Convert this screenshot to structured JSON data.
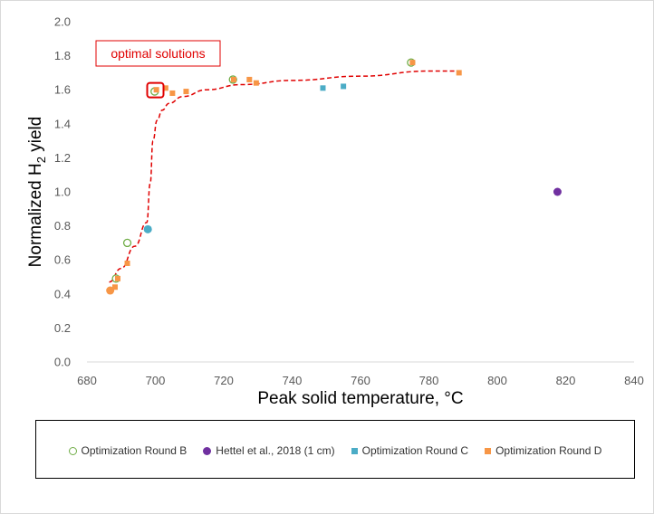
{
  "chart_data": {
    "type": "scatter",
    "xlabel": "Peak solid temperature, °C",
    "ylabel_prefix": "Normalized H",
    "ylabel_sub": "2",
    "ylabel_suffix": " yield",
    "xlim": [
      680,
      840
    ],
    "ylim": [
      0.0,
      2.0
    ],
    "xticks": [
      "680",
      "700",
      "720",
      "740",
      "760",
      "780",
      "800",
      "820",
      "840"
    ],
    "yticks": [
      "0.0",
      "0.2",
      "0.4",
      "0.6",
      "0.8",
      "1.0",
      "1.2",
      "1.4",
      "1.6",
      "1.8",
      "2.0"
    ],
    "grid": false,
    "legend_position": "bottom",
    "series": [
      {
        "name": "Optimization Round B",
        "marker": "open-circle",
        "color": "#70ad47",
        "points": [
          [
            688.5,
            0.49
          ],
          [
            691.8,
            0.7
          ],
          [
            699.8,
            1.59
          ],
          [
            722.7,
            1.66
          ],
          [
            774.8,
            1.76
          ]
        ]
      },
      {
        "name": "Hettel et al., 2018 (1 cm)",
        "marker": "circle",
        "color": "#7030a0",
        "points": [
          [
            817.6,
            1.0
          ]
        ]
      },
      {
        "name": "Optimization Round C",
        "marker": "square",
        "color": "#4bacc6",
        "points": [
          [
            749.0,
            1.61
          ],
          [
            755.0,
            1.62
          ]
        ]
      },
      {
        "name": "Optimization Round D",
        "marker": "square",
        "color": "#f79646",
        "points": [
          [
            688.2,
            0.44
          ],
          [
            689.0,
            0.49
          ],
          [
            691.8,
            0.58
          ],
          [
            700.3,
            1.6
          ],
          [
            703.0,
            1.61
          ],
          [
            705.0,
            1.58
          ],
          [
            709.0,
            1.59
          ],
          [
            722.9,
            1.66
          ],
          [
            727.5,
            1.66
          ],
          [
            729.5,
            1.64
          ],
          [
            775.2,
            1.76
          ],
          [
            788.8,
            1.7
          ]
        ]
      }
    ],
    "extra_points": [
      {
        "x": 686.8,
        "y": 0.42,
        "color": "#f79646",
        "marker": "circle"
      },
      {
        "x": 697.8,
        "y": 0.78,
        "color": "#4bacc6",
        "marker": "circle"
      }
    ],
    "trend_line": {
      "color": "#e00000",
      "style": "dashed",
      "points": [
        [
          686.5,
          0.47
        ],
        [
          690,
          0.55
        ],
        [
          694,
          0.68
        ],
        [
          697.5,
          0.82
        ],
        [
          698.5,
          1.05
        ],
        [
          699.3,
          1.3
        ],
        [
          700.5,
          1.42
        ],
        [
          702,
          1.48
        ],
        [
          704,
          1.52
        ],
        [
          708,
          1.56
        ],
        [
          715,
          1.6
        ],
        [
          725,
          1.63
        ],
        [
          740,
          1.655
        ],
        [
          760,
          1.68
        ],
        [
          780,
          1.71
        ],
        [
          788,
          1.71
        ]
      ]
    },
    "annotation": {
      "text": "optimal solutions",
      "color": "#e00000",
      "target": [
        700.0,
        1.595
      ]
    }
  }
}
